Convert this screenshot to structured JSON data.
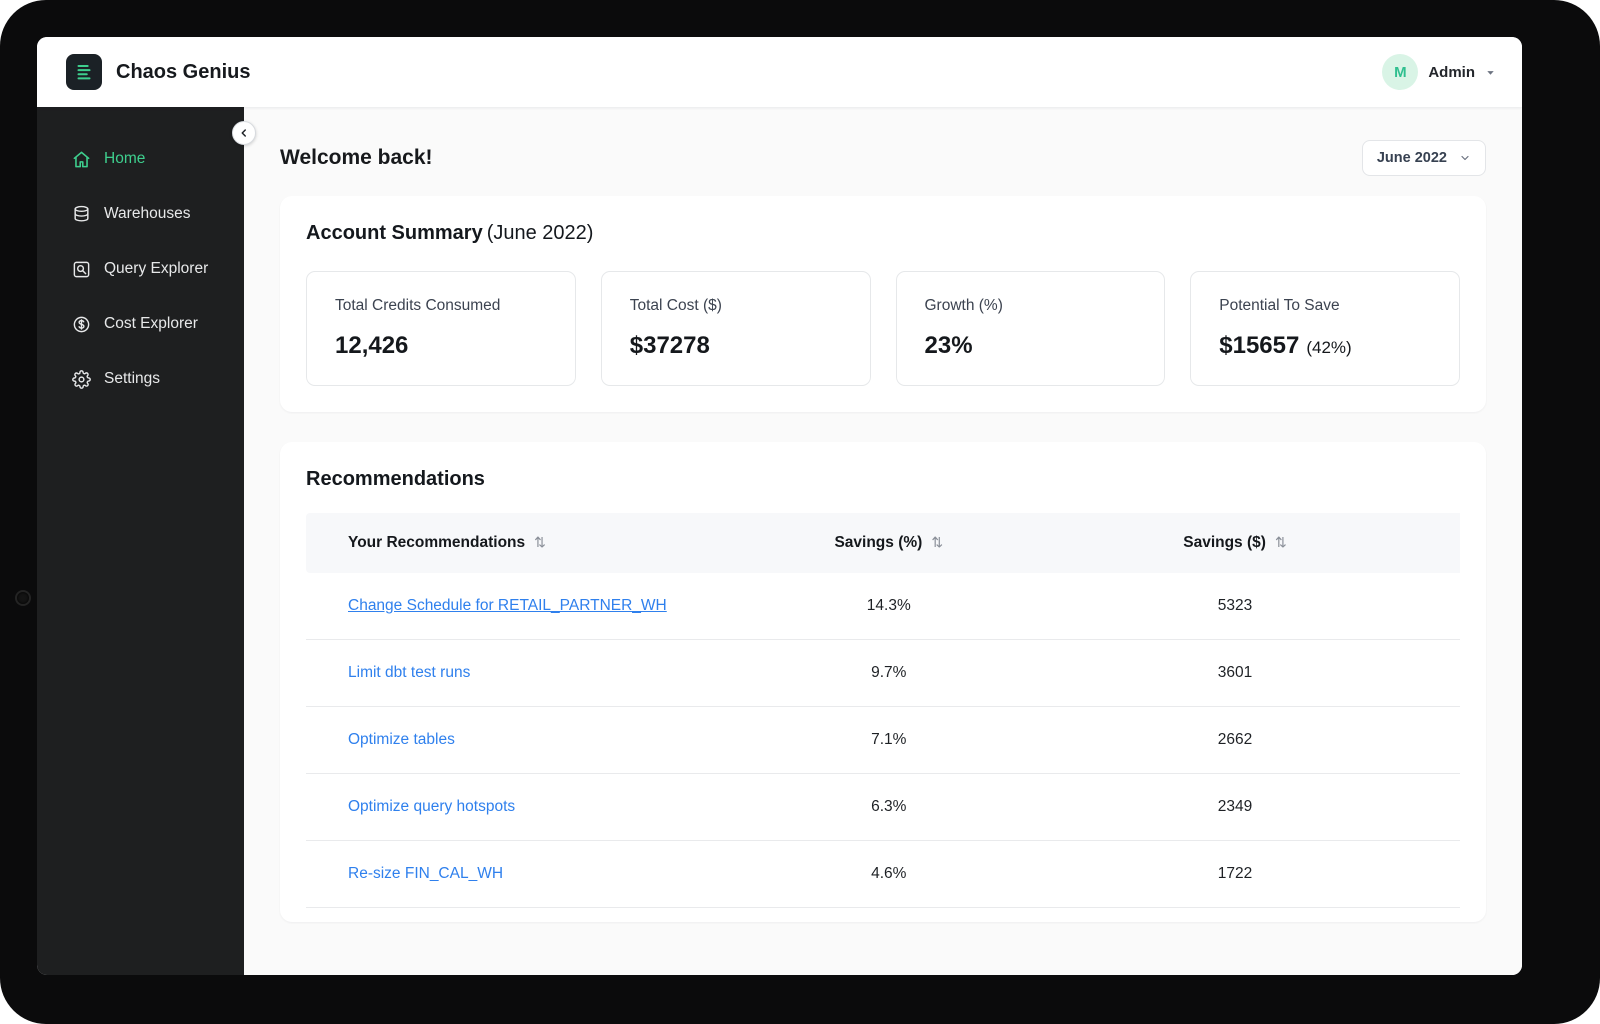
{
  "colors": {
    "accent_green": "#3ecf8e",
    "link_blue": "#2f80ed",
    "sidebar_bg": "#1e1f20"
  },
  "icons": {
    "sort": "⇅"
  },
  "header": {
    "brand": "Chaos Genius",
    "user_initial": "M",
    "user_name": "Admin"
  },
  "sidebar": {
    "items": [
      {
        "label": "Home",
        "icon": "home-icon",
        "active": true
      },
      {
        "label": "Warehouses",
        "icon": "warehouses-icon",
        "active": false
      },
      {
        "label": "Query Explorer",
        "icon": "query-explorer-icon",
        "active": false
      },
      {
        "label": "Cost Explorer",
        "icon": "cost-explorer-icon",
        "active": false
      },
      {
        "label": "Settings",
        "icon": "settings-icon",
        "active": false
      }
    ]
  },
  "main": {
    "welcome": "Welcome back!",
    "date_filter": {
      "value": "June 2022"
    },
    "account_summary": {
      "title": "Account Summary",
      "subtitle": "(June 2022)",
      "stats": [
        {
          "label": "Total Credits Consumed",
          "value": "12,426",
          "suffix": ""
        },
        {
          "label": "Total Cost ($)",
          "value": "$37278",
          "suffix": ""
        },
        {
          "label": "Growth (%)",
          "value": "23%",
          "suffix": ""
        },
        {
          "label": "Potential To Save",
          "value": "$15657",
          "suffix": "(42%)"
        }
      ]
    },
    "recommendations": {
      "title": "Recommendations",
      "columns": [
        "Your Recommendations",
        "Savings (%)",
        "Savings ($)"
      ],
      "rows": [
        {
          "name": "Change Schedule for RETAIL_PARTNER_WH",
          "savings_pct": "14.3%",
          "savings_usd": "5323",
          "underline": true
        },
        {
          "name": "Limit dbt test runs",
          "savings_pct": "9.7%",
          "savings_usd": "3601",
          "underline": false
        },
        {
          "name": "Optimize tables",
          "savings_pct": "7.1%",
          "savings_usd": "2662",
          "underline": false
        },
        {
          "name": "Optimize query hotspots",
          "savings_pct": "6.3%",
          "savings_usd": "2349",
          "underline": false
        },
        {
          "name": "Re-size FIN_CAL_WH",
          "savings_pct": "4.6%",
          "savings_usd": "1722",
          "underline": false
        }
      ]
    }
  }
}
